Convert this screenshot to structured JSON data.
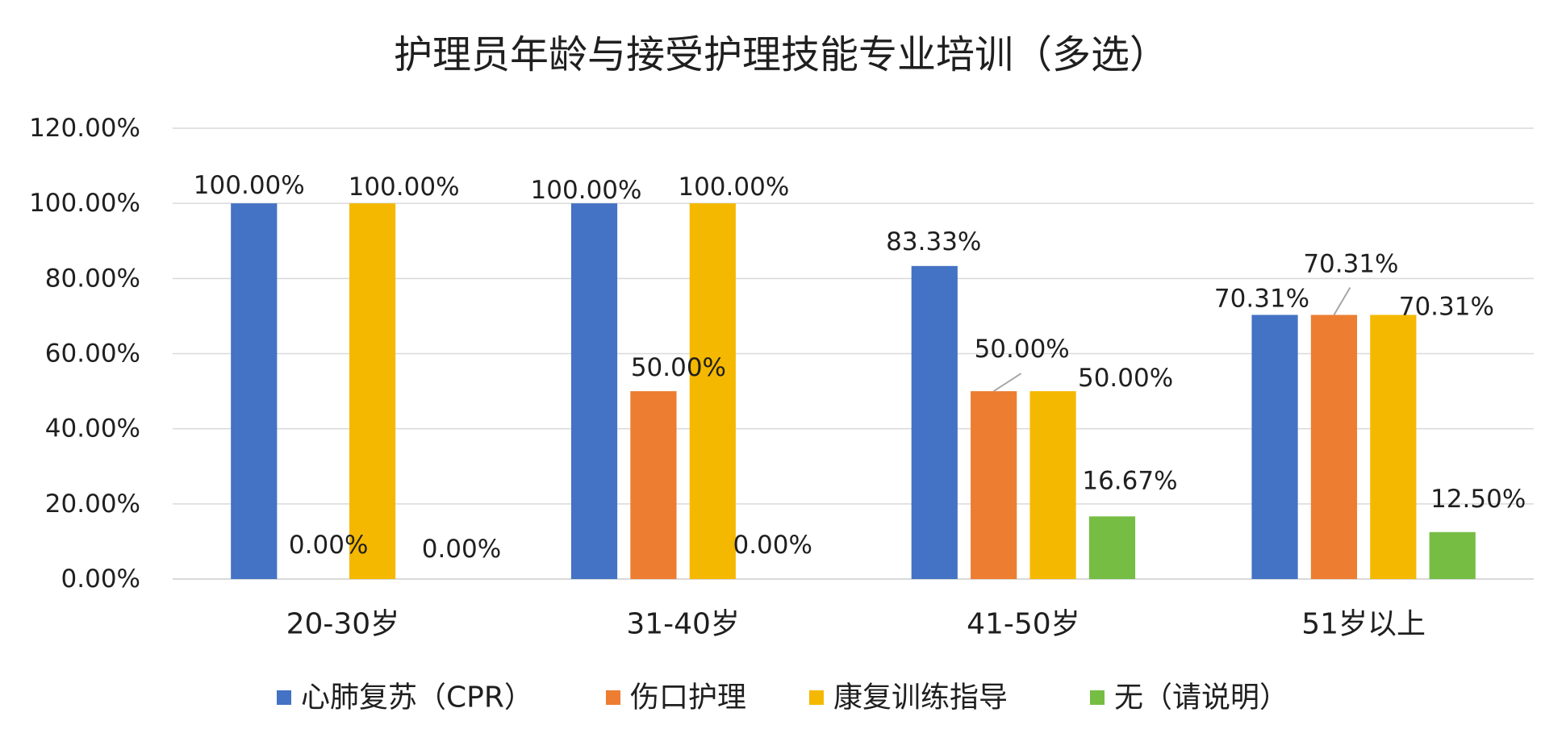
{
  "chart_data": {
    "type": "bar",
    "title": "护理员年龄与接受护理技能专业培训（多选）",
    "categories": [
      "20-30岁",
      "31-40岁",
      "41-50岁",
      "51岁以上"
    ],
    "series": [
      {
        "name": "心肺复苏（CPR）",
        "color": "#4472C4",
        "values": [
          100,
          100,
          83.33,
          70.31
        ],
        "labels": [
          "100.00%",
          "100.00%",
          "83.33%",
          "70.31%"
        ]
      },
      {
        "name": "伤口护理",
        "color": "#ED7D31",
        "values": [
          0,
          50,
          50,
          70.31
        ],
        "labels": [
          "0.00%",
          "50.00%",
          "50.00%",
          "70.31%"
        ]
      },
      {
        "name": "康复训练指导",
        "color": "#F5B800",
        "values": [
          100,
          100,
          50,
          70.31
        ],
        "labels": [
          "100.00%",
          "100.00%",
          "50.00%",
          "70.31%"
        ]
      },
      {
        "name": "无（请说明）",
        "color": "#76BD44",
        "values": [
          0,
          0,
          16.67,
          12.5
        ],
        "labels": [
          "0.00%",
          "0.00%",
          "16.67%",
          "12.50%"
        ]
      }
    ],
    "ylim": [
      0,
      120
    ],
    "yticks": [
      0,
      20,
      40,
      60,
      80,
      100,
      120
    ],
    "ytick_labels": [
      "0.00%",
      "20.00%",
      "40.00%",
      "60.00%",
      "80.00%",
      "100.00%",
      "120.00%"
    ],
    "grid": true,
    "legend": "bottom"
  }
}
